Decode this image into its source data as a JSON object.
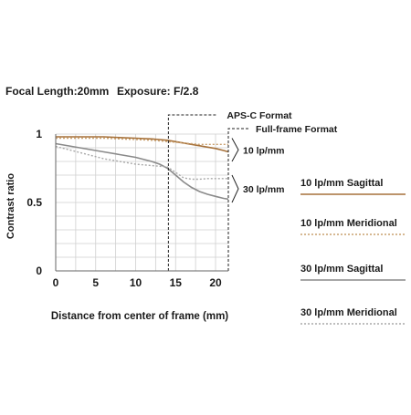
{
  "header": {
    "focal_length": "Focal Length:20mm",
    "exposure": "Exposure: F/2.8"
  },
  "chart_data": {
    "type": "line",
    "xlabel": "Distance from center of frame (mm)",
    "ylabel": "Contrast ratio",
    "xlim": [
      0,
      21.6
    ],
    "ylim": [
      0,
      1
    ],
    "x_ticks": [
      "0",
      "5",
      "10",
      "15",
      "20"
    ],
    "x_tick_values": [
      0,
      5,
      10,
      15,
      20
    ],
    "y_ticks": [
      "0",
      "0.5",
      "1"
    ],
    "y_tick_values": [
      0,
      0.5,
      1
    ],
    "grid": true,
    "legend_position": "right",
    "formats": [
      {
        "label": "APS-C Format",
        "x": 14.1
      },
      {
        "label": "Full-frame Format",
        "x": 21.6
      }
    ],
    "annotations": [
      {
        "label": "10 lp/mm",
        "y_from": 0.8,
        "y_to": 0.97
      },
      {
        "label": "30 lp/mm",
        "y_from": 0.5,
        "y_to": 0.7
      }
    ],
    "series": [
      {
        "name": "10 lp/mm Sagittal",
        "color": "#a6713a",
        "dash": "solid",
        "x": [
          0,
          2,
          4,
          6,
          8,
          10,
          12,
          13,
          14,
          15,
          16,
          17,
          18,
          19,
          20,
          21,
          21.6
        ],
        "y": [
          0.98,
          0.98,
          0.98,
          0.98,
          0.975,
          0.97,
          0.965,
          0.96,
          0.955,
          0.945,
          0.935,
          0.925,
          0.915,
          0.905,
          0.895,
          0.88,
          0.87
        ]
      },
      {
        "name": "10 lp/mm Meridional",
        "color": "#c9a06e",
        "dash": "dotted",
        "x": [
          0,
          2,
          4,
          6,
          8,
          10,
          12,
          13,
          14,
          15,
          16,
          17,
          18,
          19,
          20,
          21,
          21.6
        ],
        "y": [
          0.97,
          0.97,
          0.97,
          0.97,
          0.965,
          0.96,
          0.955,
          0.95,
          0.945,
          0.94,
          0.935,
          0.93,
          0.925,
          0.925,
          0.925,
          0.925,
          0.925
        ]
      },
      {
        "name": "30 lp/mm Sagittal",
        "color": "#8a8a8a",
        "dash": "solid",
        "x": [
          0,
          2,
          4,
          6,
          8,
          10,
          12,
          13,
          14,
          15,
          16,
          17,
          18,
          19,
          20,
          21,
          21.6
        ],
        "y": [
          0.93,
          0.91,
          0.89,
          0.87,
          0.85,
          0.83,
          0.8,
          0.78,
          0.75,
          0.7,
          0.65,
          0.61,
          0.58,
          0.56,
          0.545,
          0.53,
          0.525
        ]
      },
      {
        "name": "30 lp/mm Meridional",
        "color": "#a8a8a8",
        "dash": "dotted",
        "x": [
          0,
          2,
          4,
          6,
          8,
          10,
          12,
          13,
          14,
          15,
          16,
          17,
          18,
          19,
          20,
          21,
          21.6
        ],
        "y": [
          0.91,
          0.88,
          0.85,
          0.82,
          0.8,
          0.78,
          0.77,
          0.765,
          0.76,
          0.72,
          0.68,
          0.67,
          0.67,
          0.675,
          0.675,
          0.675,
          0.675
        ]
      }
    ]
  },
  "legend": [
    {
      "label": "10 lp/mm Sagittal",
      "color": "#a6713a",
      "dash": "solid"
    },
    {
      "label": "10 lp/mm Meridional",
      "color": "#c9a06e",
      "dash": "dotted"
    },
    {
      "label": "30 lp/mm Sagittal",
      "color": "#8a8a8a",
      "dash": "solid"
    },
    {
      "label": "30 lp/mm Meridional",
      "color": "#a8a8a8",
      "dash": "dotted"
    }
  ]
}
